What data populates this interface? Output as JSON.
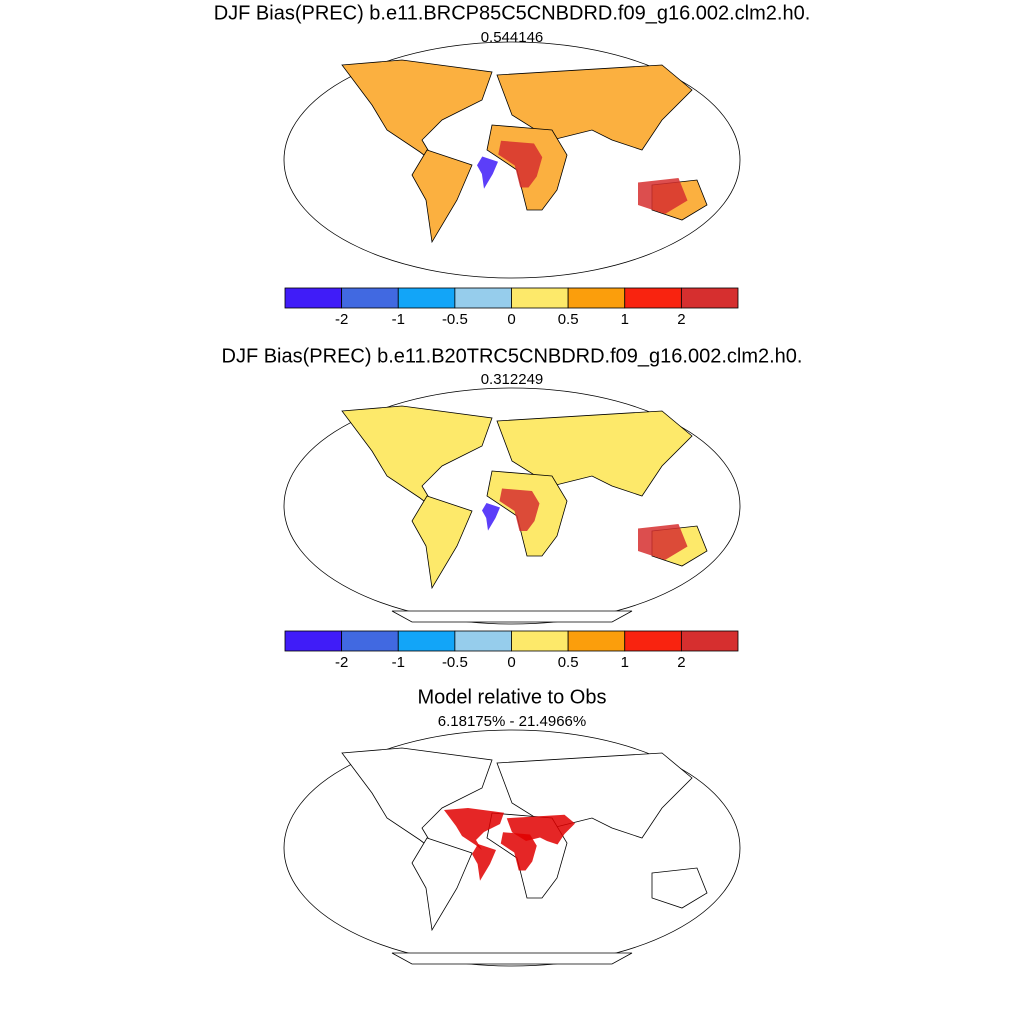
{
  "panels": [
    {
      "title": "DJF Bias(PREC) b.e11.BRCP85C5CNBDRD.f09_g16.002.clm2.h0.",
      "subtitle": "0.544146",
      "colorbar": {
        "levels": [
          -2,
          -1,
          -0.5,
          0,
          0.5,
          1,
          2
        ],
        "colors": [
          "#401cf8",
          "#4169e1",
          "#12a5f8",
          "#96cdec",
          "#fde96a",
          "#fb9e0c",
          "#f9230f",
          "#d62f2f"
        ]
      }
    },
    {
      "title": "DJF Bias(PREC) b.e11.B20TRC5CNBDRD.f09_g16.002.clm2.h0.",
      "subtitle": "0.312249",
      "colorbar": {
        "levels": [
          -2,
          -1,
          -0.5,
          0,
          0.5,
          1,
          2
        ],
        "colors": [
          "#401cf8",
          "#4169e1",
          "#12a5f8",
          "#96cdec",
          "#fde96a",
          "#fb9e0c",
          "#f9230f",
          "#d62f2f"
        ]
      }
    },
    {
      "title": "Model relative to Obs",
      "subtitle": "6.18175% - 21.4966%"
    }
  ]
}
